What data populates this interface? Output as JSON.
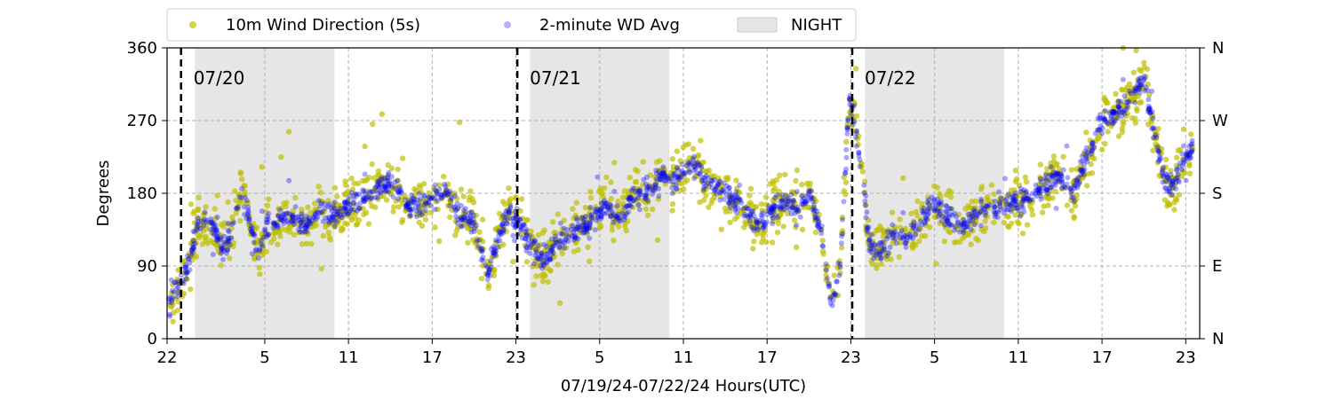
{
  "chart_data": {
    "type": "scatter",
    "xlabel": "07/19/24-07/22/24  Hours(UTC)",
    "ylabel": "Degrees",
    "x_range_hours": [
      0,
      74
    ],
    "x_ticks": [
      {
        "h": 0,
        "label": "22"
      },
      {
        "h": 7,
        "label": "5"
      },
      {
        "h": 13,
        "label": "11"
      },
      {
        "h": 19,
        "label": "17"
      },
      {
        "h": 25,
        "label": "23"
      },
      {
        "h": 31,
        "label": "5"
      },
      {
        "h": 37,
        "label": "11"
      },
      {
        "h": 43,
        "label": "17"
      },
      {
        "h": 49,
        "label": "23"
      },
      {
        "h": 55,
        "label": "5"
      },
      {
        "h": 61,
        "label": "11"
      },
      {
        "h": 67,
        "label": "17"
      },
      {
        "h": 73,
        "label": "23"
      }
    ],
    "ylim": [
      0,
      360
    ],
    "y_ticks": [
      0,
      90,
      180,
      270,
      360
    ],
    "y2_ticks": [
      {
        "v": 0,
        "label": "N"
      },
      {
        "v": 90,
        "label": "E"
      },
      {
        "v": 180,
        "label": "S"
      },
      {
        "v": 270,
        "label": "W"
      },
      {
        "v": 360,
        "label": "N"
      }
    ],
    "grid": true,
    "legend_placement": "top",
    "day_markers": [
      {
        "h": 1,
        "label": "07/20"
      },
      {
        "h": 25.1,
        "label": "07/21"
      },
      {
        "h": 49.1,
        "label": "07/22"
      }
    ],
    "night_periods": [
      [
        2,
        12
      ],
      [
        26,
        36
      ],
      [
        50,
        60
      ]
    ],
    "series": [
      {
        "name": "10m Wind Direction (5s)",
        "color": "#bfbf00",
        "spread": 32,
        "keypoints": [
          [
            0,
            30
          ],
          [
            0.5,
            60
          ],
          [
            1,
            70
          ],
          [
            1.6,
            95
          ],
          [
            2.2,
            140
          ],
          [
            3,
            150
          ],
          [
            3.6,
            130
          ],
          [
            4,
            110
          ],
          [
            4.6,
            130
          ],
          [
            5.3,
            180
          ],
          [
            6,
            140
          ],
          [
            6.6,
            100
          ],
          [
            7.1,
            140
          ],
          [
            8,
            145
          ],
          [
            9,
            150
          ],
          [
            10,
            140
          ],
          [
            11,
            160
          ],
          [
            12,
            155
          ],
          [
            13,
            165
          ],
          [
            14,
            175
          ],
          [
            15,
            185
          ],
          [
            16,
            195
          ],
          [
            17,
            170
          ],
          [
            18,
            160
          ],
          [
            19,
            175
          ],
          [
            20,
            185
          ],
          [
            21,
            150
          ],
          [
            22,
            140
          ],
          [
            23,
            80
          ],
          [
            23.7,
            120
          ],
          [
            24.5,
            160
          ],
          [
            25.3,
            140
          ],
          [
            26,
            120
          ],
          [
            26.8,
            100
          ],
          [
            27.6,
            110
          ],
          [
            28.5,
            130
          ],
          [
            29.5,
            135
          ],
          [
            30.5,
            150
          ],
          [
            31.5,
            160
          ],
          [
            32.5,
            150
          ],
          [
            33.5,
            180
          ],
          [
            34.5,
            185
          ],
          [
            35.5,
            200
          ],
          [
            36.5,
            195
          ],
          [
            37.5,
            215
          ],
          [
            38.5,
            200
          ],
          [
            39.5,
            185
          ],
          [
            40.5,
            175
          ],
          [
            41.5,
            160
          ],
          [
            42.5,
            140
          ],
          [
            43.3,
            160
          ],
          [
            44.3,
            170
          ],
          [
            45.3,
            160
          ],
          [
            46,
            180
          ],
          [
            47,
            120
          ],
          [
            47.6,
            40
          ],
          [
            48.2,
            80
          ],
          [
            48.9,
            300
          ],
          [
            49.3,
            270
          ],
          [
            49.8,
            210
          ],
          [
            50.3,
            120
          ],
          [
            51,
            100
          ],
          [
            52,
            130
          ],
          [
            53,
            120
          ],
          [
            54,
            150
          ],
          [
            55,
            165
          ],
          [
            56,
            150
          ],
          [
            57,
            140
          ],
          [
            58,
            155
          ],
          [
            59,
            160
          ],
          [
            60,
            165
          ],
          [
            61,
            170
          ],
          [
            62,
            175
          ],
          [
            63,
            190
          ],
          [
            64,
            200
          ],
          [
            65,
            185
          ],
          [
            66,
            230
          ],
          [
            67,
            270
          ],
          [
            68,
            280
          ],
          [
            69,
            300
          ],
          [
            70,
            320
          ],
          [
            70.7,
            260
          ],
          [
            71.4,
            200
          ],
          [
            72.2,
            190
          ],
          [
            73,
            230
          ]
        ]
      },
      {
        "name": "2-minute WD Avg",
        "color": "#0000ff",
        "spread": 14,
        "keypoints": [
          [
            0,
            30
          ],
          [
            0.5,
            60
          ],
          [
            1,
            70
          ],
          [
            1.6,
            95
          ],
          [
            2.2,
            140
          ],
          [
            3,
            150
          ],
          [
            3.6,
            130
          ],
          [
            4,
            110
          ],
          [
            4.6,
            130
          ],
          [
            5.3,
            180
          ],
          [
            6,
            140
          ],
          [
            6.6,
            100
          ],
          [
            7.1,
            140
          ],
          [
            8,
            145
          ],
          [
            9,
            150
          ],
          [
            10,
            140
          ],
          [
            11,
            160
          ],
          [
            12,
            155
          ],
          [
            13,
            165
          ],
          [
            14,
            175
          ],
          [
            15,
            185
          ],
          [
            16,
            195
          ],
          [
            17,
            170
          ],
          [
            18,
            160
          ],
          [
            19,
            175
          ],
          [
            20,
            185
          ],
          [
            21,
            150
          ],
          [
            22,
            140
          ],
          [
            23,
            80
          ],
          [
            23.7,
            120
          ],
          [
            24.5,
            160
          ],
          [
            25.3,
            140
          ],
          [
            26,
            120
          ],
          [
            26.8,
            100
          ],
          [
            27.6,
            110
          ],
          [
            28.5,
            130
          ],
          [
            29.5,
            135
          ],
          [
            30.5,
            150
          ],
          [
            31.5,
            160
          ],
          [
            32.5,
            150
          ],
          [
            33.5,
            180
          ],
          [
            34.5,
            185
          ],
          [
            35.5,
            200
          ],
          [
            36.5,
            195
          ],
          [
            37.5,
            215
          ],
          [
            38.5,
            200
          ],
          [
            39.5,
            185
          ],
          [
            40.5,
            175
          ],
          [
            41.5,
            160
          ],
          [
            42.5,
            140
          ],
          [
            43.3,
            160
          ],
          [
            44.3,
            170
          ],
          [
            45.3,
            160
          ],
          [
            46,
            180
          ],
          [
            47,
            120
          ],
          [
            47.6,
            40
          ],
          [
            48.2,
            80
          ],
          [
            48.9,
            300
          ],
          [
            49.3,
            270
          ],
          [
            49.8,
            210
          ],
          [
            50.3,
            120
          ],
          [
            51,
            100
          ],
          [
            52,
            130
          ],
          [
            53,
            120
          ],
          [
            54,
            150
          ],
          [
            55,
            165
          ],
          [
            56,
            150
          ],
          [
            57,
            140
          ],
          [
            58,
            155
          ],
          [
            59,
            160
          ],
          [
            60,
            165
          ],
          [
            61,
            170
          ],
          [
            62,
            175
          ],
          [
            63,
            190
          ],
          [
            64,
            200
          ],
          [
            65,
            185
          ],
          [
            66,
            230
          ],
          [
            67,
            270
          ],
          [
            68,
            280
          ],
          [
            69,
            300
          ],
          [
            70,
            320
          ],
          [
            70.7,
            260
          ],
          [
            71.4,
            200
          ],
          [
            72.2,
            190
          ],
          [
            73,
            230
          ]
        ]
      }
    ],
    "legend_night_label": "NIGHT",
    "night_color": "#e6e6e6"
  }
}
